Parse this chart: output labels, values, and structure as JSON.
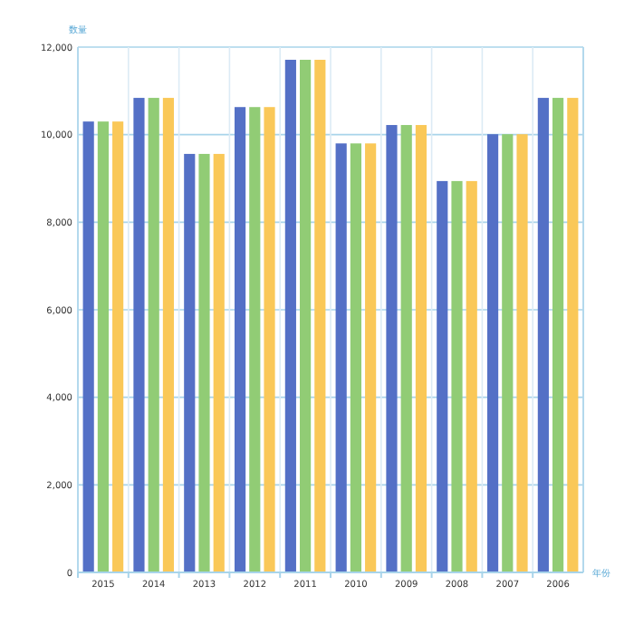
{
  "chart_data": {
    "type": "bar",
    "ylabel": "数量",
    "xlabel": "年份",
    "categories": [
      "2015",
      "2014",
      "2013",
      "2012",
      "2011",
      "2010",
      "2009",
      "2008",
      "2007",
      "2006"
    ],
    "series": [
      {
        "color": "#5470c6",
        "values": [
          10300,
          10840,
          9560,
          10630,
          11710,
          9800,
          10220,
          8940,
          10010,
          10840
        ]
      },
      {
        "color": "#91cc75",
        "values": [
          10300,
          10840,
          9560,
          10630,
          11710,
          9800,
          10220,
          8940,
          10010,
          10840
        ]
      },
      {
        "color": "#fac858",
        "values": [
          10300,
          10840,
          9560,
          10630,
          11710,
          9800,
          10220,
          8940,
          10010,
          10840
        ]
      }
    ],
    "ylim": [
      0,
      12000
    ],
    "yticks": [
      {
        "value": 0,
        "label": "0"
      },
      {
        "value": 2000,
        "label": "2,000"
      },
      {
        "value": 4000,
        "label": "4,000"
      },
      {
        "value": 6000,
        "label": "6,000"
      },
      {
        "value": 8000,
        "label": "8,000"
      },
      {
        "value": 10000,
        "label": "10,000"
      },
      {
        "value": 12000,
        "label": "12,000"
      }
    ],
    "grid": true
  }
}
